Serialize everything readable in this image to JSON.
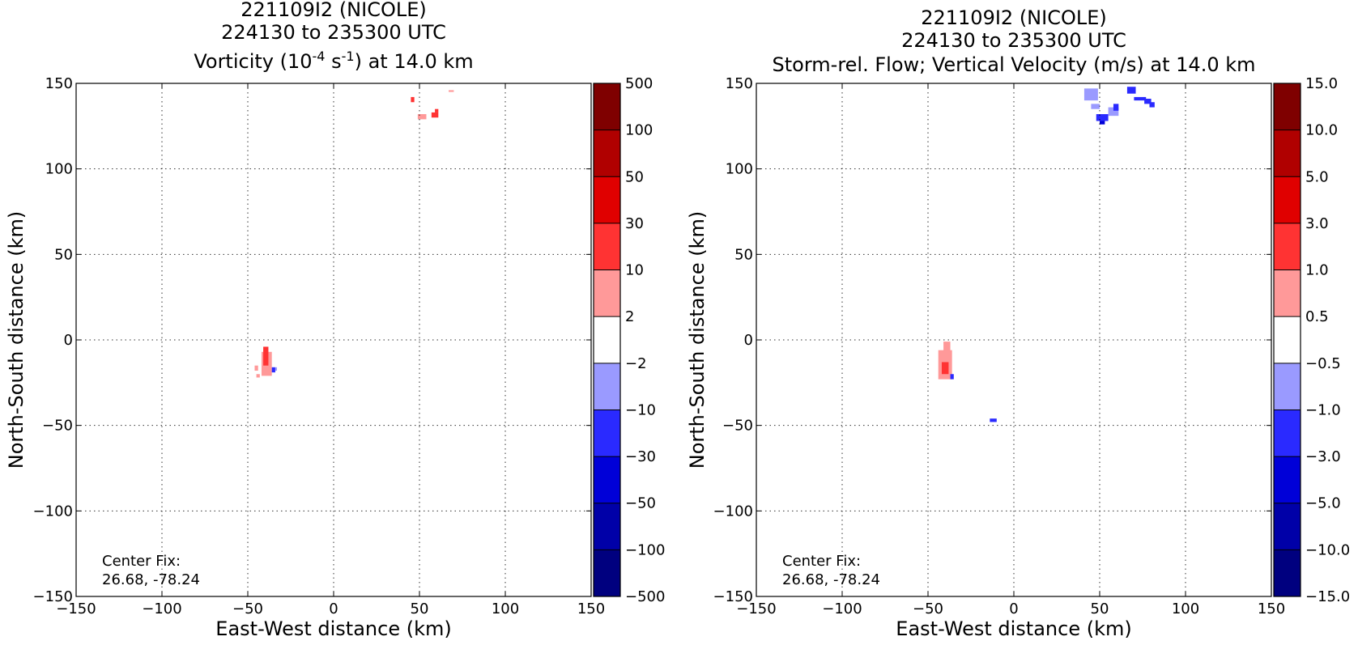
{
  "chart_data": [
    {
      "type": "heatmap",
      "title_lines": [
        "221109I2 (NICOLE)",
        "224130 to 235300 UTC"
      ],
      "title_var": {
        "pre": "Vorticity (10",
        "sup1": "-4",
        "mid": " s",
        "sup2": "-1",
        "post": ") at 14.0 km"
      },
      "xlabel": "East-West distance (km)",
      "ylabel": "North-South distance (km)",
      "xlim": [
        -150,
        150
      ],
      "ylim": [
        -150,
        150
      ],
      "xticks": [
        -150,
        -100,
        -50,
        0,
        50,
        100,
        150
      ],
      "yticks": [
        -150,
        -100,
        -50,
        0,
        50,
        100,
        150
      ],
      "xtick_labels": [
        "−150",
        "−100",
        "−50",
        "0",
        "50",
        "100",
        "150"
      ],
      "ytick_labels": [
        "−150",
        "−100",
        "−50",
        "0",
        "50",
        "100",
        "150"
      ],
      "grid": true,
      "annotation": [
        "Center Fix:",
        "26.68, -78.24"
      ],
      "colorbar": {
        "labels": [
          "−500",
          "−100",
          "−50",
          "−30",
          "−10",
          "−2",
          "2",
          "10",
          "30",
          "50",
          "100",
          "500"
        ],
        "colors": [
          "#00007f",
          "#0000a8",
          "#0000d8",
          "#2a2aff",
          "#9a9aff",
          "#ffffff",
          "#ff9999",
          "#ff3333",
          "#e00000",
          "#b00000",
          "#7f0000"
        ]
      },
      "patches": [
        {
          "x": [
            -42,
            -36
          ],
          "y": [
            -21,
            -7
          ],
          "level": 6
        },
        {
          "x": [
            -41,
            -38
          ],
          "y": [
            -15,
            -4
          ],
          "level": 7
        },
        {
          "x": [
            -46,
            -44
          ],
          "y": [
            -18,
            -15
          ],
          "level": 6
        },
        {
          "x": [
            -45,
            -43
          ],
          "y": [
            -22,
            -20
          ],
          "level": 6
        },
        {
          "x": [
            -36,
            -34
          ],
          "y": [
            -19,
            -16
          ],
          "level": 3
        },
        {
          "x": [
            -34,
            -33
          ],
          "y": [
            -18,
            -16
          ],
          "level": 4
        },
        {
          "x": [
            45,
            47
          ],
          "y": [
            139,
            142
          ],
          "level": 7
        },
        {
          "x": [
            49,
            54
          ],
          "y": [
            129,
            132
          ],
          "level": 6
        },
        {
          "x": [
            57,
            61
          ],
          "y": [
            130,
            133
          ],
          "level": 7
        },
        {
          "x": [
            59,
            61
          ],
          "y": [
            133,
            135
          ],
          "level": 7
        },
        {
          "x": [
            67,
            70
          ],
          "y": [
            145,
            146
          ],
          "level": 6
        }
      ]
    },
    {
      "type": "heatmap",
      "title_lines": [
        "221109I2 (NICOLE)",
        "224130 to 235300 UTC"
      ],
      "title_var": {
        "pre": "Storm-rel. Flow; Vertical Velocity (m/s) at 14.0 km",
        "sup1": "",
        "mid": "",
        "sup2": "",
        "post": ""
      },
      "xlabel": "East-West distance (km)",
      "ylabel": "North-South distance (km)",
      "xlim": [
        -150,
        150
      ],
      "ylim": [
        -150,
        150
      ],
      "xticks": [
        -150,
        -100,
        -50,
        0,
        50,
        100,
        150
      ],
      "yticks": [
        -150,
        -100,
        -50,
        0,
        50,
        100,
        150
      ],
      "xtick_labels": [
        "−150",
        "−100",
        "−50",
        "0",
        "50",
        "100",
        "150"
      ],
      "ytick_labels": [
        "−150",
        "−100",
        "−50",
        "0",
        "50",
        "100",
        "150"
      ],
      "grid": true,
      "annotation": [
        "Center Fix:",
        "26.68, -78.24"
      ],
      "colorbar": {
        "labels": [
          "−15.0",
          "−10.0",
          "−5.0",
          "−3.0",
          "−1.0",
          "−0.5",
          "0.5",
          "1.0",
          "3.0",
          "5.0",
          "10.0",
          "15.0"
        ],
        "colors": [
          "#00007f",
          "#0000a8",
          "#0000d8",
          "#2a2aff",
          "#9a9aff",
          "#ffffff",
          "#ff9999",
          "#ff3333",
          "#e00000",
          "#b00000",
          "#7f0000"
        ]
      },
      "patches": [
        {
          "x": [
            -44,
            -36
          ],
          "y": [
            -23,
            -6
          ],
          "level": 6
        },
        {
          "x": [
            -41,
            -37
          ],
          "y": [
            -10,
            -1
          ],
          "level": 6
        },
        {
          "x": [
            -42,
            -38
          ],
          "y": [
            -20,
            -13
          ],
          "level": 7
        },
        {
          "x": [
            -37,
            -35
          ],
          "y": [
            -23,
            -20
          ],
          "level": 3
        },
        {
          "x": [
            -14,
            -10
          ],
          "y": [
            -48,
            -46
          ],
          "level": 3
        },
        {
          "x": [
            41,
            49
          ],
          "y": [
            140,
            147
          ],
          "level": 4
        },
        {
          "x": [
            45,
            50
          ],
          "y": [
            135,
            138
          ],
          "level": 4
        },
        {
          "x": [
            48,
            55
          ],
          "y": [
            128,
            132
          ],
          "level": 3
        },
        {
          "x": [
            50,
            53
          ],
          "y": [
            126,
            128
          ],
          "level": 2
        },
        {
          "x": [
            55,
            61
          ],
          "y": [
            131,
            136
          ],
          "level": 4
        },
        {
          "x": [
            58,
            61
          ],
          "y": [
            134,
            138
          ],
          "level": 3
        },
        {
          "x": [
            66,
            71
          ],
          "y": [
            144,
            148
          ],
          "level": 3
        },
        {
          "x": [
            70,
            77
          ],
          "y": [
            140,
            142
          ],
          "level": 3
        },
        {
          "x": [
            76,
            80
          ],
          "y": [
            138,
            141
          ],
          "level": 3
        },
        {
          "x": [
            79,
            82
          ],
          "y": [
            136,
            139
          ],
          "level": 3
        }
      ]
    }
  ]
}
